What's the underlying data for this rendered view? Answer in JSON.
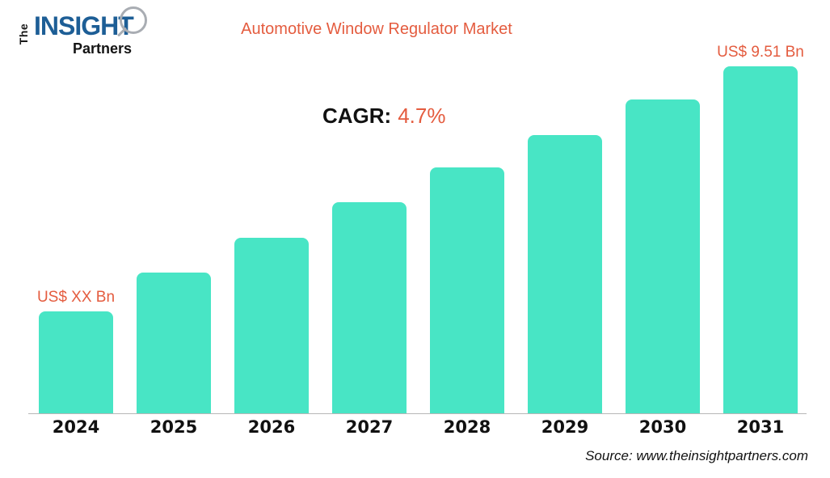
{
  "logo": {
    "the": "The",
    "insight": "INSIGHT",
    "partners": "Partners"
  },
  "chart_data": {
    "type": "bar",
    "title": "Automotive Window Regulator Market",
    "categories": [
      "2024",
      "2025",
      "2026",
      "2027",
      "2028",
      "2029",
      "2030",
      "2031"
    ],
    "values": [
      126,
      174,
      217,
      261,
      304,
      344,
      388,
      429
    ],
    "value_unit": "bar height in px (no value axis shown; bars are illustrative)",
    "point_labels": [
      "US$ XX Bn",
      "",
      "",
      "",
      "",
      "",
      "",
      "US$ 9.51 Bn"
    ],
    "labeled_values": {
      "2024": "US$ XX Bn",
      "2031": "US$ 9.51 Bn"
    },
    "annotation": {
      "prefix": "CAGR:",
      "value": "4.7%"
    },
    "bar_color": "#48e5c5",
    "label_color": "#e45c3f",
    "xlabel": "",
    "ylabel": "",
    "layout": {
      "gridlines": false,
      "y_axis_visible": false,
      "legend": "none"
    }
  },
  "source": "Source: www.theinsightpartners.com",
  "colors": {
    "accent_orange": "#e45c3f",
    "bar_teal": "#48e5c5",
    "logo_blue": "#1d5e96",
    "axis_line_gray": "#b7b7b7",
    "text_black": "#111111"
  }
}
